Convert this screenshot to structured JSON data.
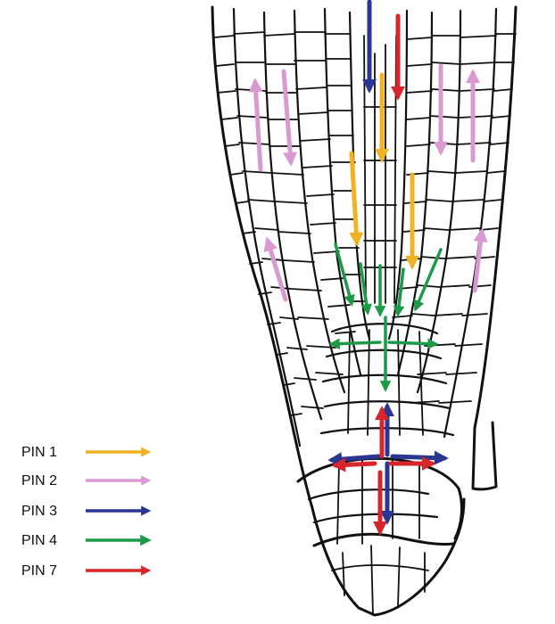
{
  "legend": {
    "items": [
      {
        "label": "PIN 1",
        "color": "#f0b323"
      },
      {
        "label": "PIN 2",
        "color": "#d99ad1"
      },
      {
        "label": "PIN 3",
        "color": "#2b3592"
      },
      {
        "label": "PIN 4",
        "color": "#1d9a48"
      },
      {
        "label": "PIN 7",
        "color": "#d6252b"
      }
    ]
  }
}
